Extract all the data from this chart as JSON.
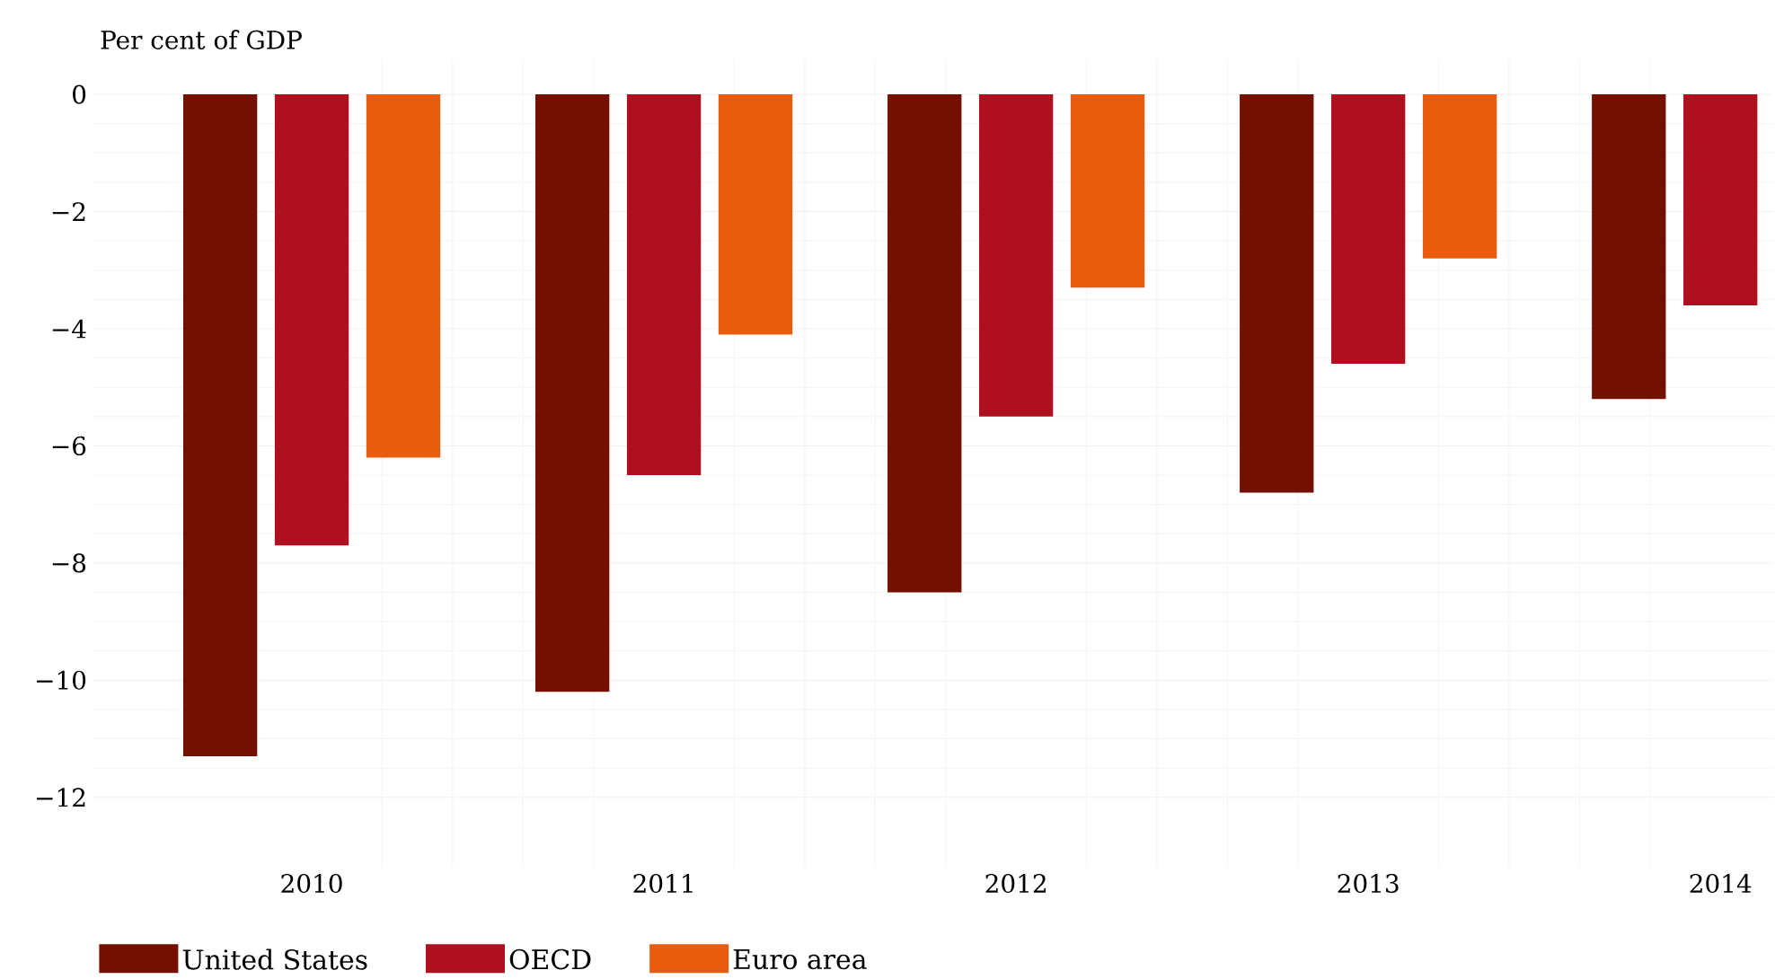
{
  "chart_data": {
    "type": "bar",
    "ylabel": "Per cent of GDP",
    "categories": [
      "2010",
      "2011",
      "2012",
      "2013",
      "2014"
    ],
    "series": [
      {
        "name": "United States",
        "color": "#731000",
        "values": [
          -11.3,
          -10.2,
          -8.5,
          -6.8,
          -5.2
        ]
      },
      {
        "name": "OECD",
        "color": "#ae1020",
        "values": [
          -7.7,
          -6.5,
          -5.5,
          -4.6,
          -3.6
        ]
      },
      {
        "name": "Euro area",
        "color": "#e95c0e",
        "values": [
          -6.2,
          -4.1,
          -3.3,
          -2.8,
          null
        ]
      }
    ],
    "ylim": [
      -13.2,
      0.6
    ],
    "yticks": [
      {
        "value": 0,
        "label": "0"
      },
      {
        "value": -2,
        "label": "−2"
      },
      {
        "value": -4,
        "label": "−4"
      },
      {
        "value": -6,
        "label": "−6"
      },
      {
        "value": -8,
        "label": "−8"
      },
      {
        "value": -10,
        "label": "−10"
      },
      {
        "value": -12,
        "label": "−12"
      }
    ],
    "grid": true,
    "legend": "bottom left"
  }
}
